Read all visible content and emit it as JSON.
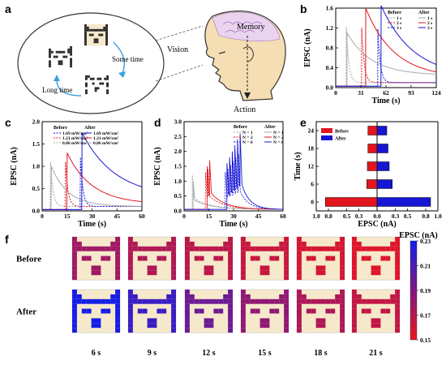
{
  "panel_labels": [
    "a",
    "b",
    "c",
    "d",
    "e",
    "f"
  ],
  "panel_a": {
    "vision_label": "Vision",
    "memory_label": "Memory",
    "action_label": "Action",
    "some_time_label": "Some time",
    "long_time_label": "Long time"
  },
  "colors": {
    "red": "#e0161c",
    "blue": "#1616d4",
    "gray": "#a8a8a8",
    "cream": "#f6e9cb",
    "pixel_dark": "#2b2b2b"
  },
  "chart_data": [
    {
      "id": "b",
      "type": "line",
      "xlabel": "Time (s)",
      "ylabel": "EPSC (nA)",
      "xlim": [
        0,
        124
      ],
      "ylim": [
        0,
        1.6
      ],
      "xticks": [
        0,
        31,
        62,
        93,
        124
      ],
      "yticks": [
        0.0,
        0.4,
        0.8,
        1.2,
        1.6
      ],
      "legend_before_title": "Before",
      "legend_after_title": "After",
      "legend_before": [
        "1 s",
        "2 s",
        "3 s"
      ],
      "legend_after": [
        "1 s",
        "2 s",
        "3 s"
      ],
      "pulses": [
        {
          "group": "before",
          "color": "gray",
          "dash": "2,1.5",
          "t": 13,
          "peak": 1.22,
          "base": 0.1,
          "tau": 3
        },
        {
          "group": "before",
          "color": "red",
          "dash": "2,1.5",
          "t": 32,
          "peak": 1.2,
          "base": 0.1,
          "tau": 3
        },
        {
          "group": "before",
          "color": "blue",
          "dash": "2,1.5",
          "t": 52,
          "peak": 1.18,
          "base": 0.1,
          "tau": 3
        },
        {
          "group": "after",
          "color": "gray",
          "dash": "",
          "t": 14,
          "peak": 1.1,
          "base": 0.25,
          "tau": 30
        },
        {
          "group": "after",
          "color": "red",
          "dash": "",
          "t": 37,
          "peak": 1.6,
          "base": 0.2,
          "tau": 35
        },
        {
          "group": "after",
          "color": "blue",
          "dash": "",
          "t": 56,
          "peak": 1.65,
          "base": 0.2,
          "tau": 40
        }
      ]
    },
    {
      "id": "c",
      "type": "line",
      "xlabel": "Time (s)",
      "ylabel": "EPSC (nA)",
      "xlim": [
        0,
        60
      ],
      "ylim": [
        0,
        2.0
      ],
      "xticks": [
        0,
        15,
        30,
        45,
        60
      ],
      "yticks": [
        0.0,
        0.5,
        1.0,
        1.5,
        2.0
      ],
      "legend_before_title": "Before",
      "legend_after_title": "After",
      "legend_before": [
        "1.69 mW/cm²",
        "1.21 mW/cm²",
        "0.86 mW/cm²"
      ],
      "legend_after": [
        "1.69 mW/cm²",
        "1.21 mW/cm²",
        "0.86 mW/cm²"
      ],
      "legend_before_colors": [
        "blue",
        "red",
        "gray"
      ],
      "legend_after_colors": [
        "blue",
        "red",
        "gray"
      ],
      "pulses": [
        {
          "group": "before",
          "color": "gray",
          "dash": "2,1.5",
          "t": 5,
          "peak": 1.1,
          "base": 0.1,
          "tau": 1.5
        },
        {
          "group": "before",
          "color": "red",
          "dash": "2,1.5",
          "t": 14,
          "peak": 1.1,
          "base": 0.1,
          "tau": 1.5
        },
        {
          "group": "before",
          "color": "blue",
          "dash": "2,1.5",
          "t": 23,
          "peak": 1.2,
          "base": 0.1,
          "tau": 1.5
        },
        {
          "group": "after",
          "color": "gray",
          "dash": "",
          "t": 5.5,
          "peak": 1.0,
          "base": 0.1,
          "tau": 10
        },
        {
          "group": "after",
          "color": "red",
          "dash": "",
          "t": 15,
          "peak": 1.3,
          "base": 0.15,
          "tau": 15
        },
        {
          "group": "after",
          "color": "blue",
          "dash": "",
          "t": 24,
          "peak": 1.75,
          "base": 0.3,
          "tau": 20
        }
      ]
    },
    {
      "id": "d",
      "type": "line",
      "xlabel": "Time (s)",
      "ylabel": "EPSC (nA)",
      "xlim": [
        0,
        60
      ],
      "ylim": [
        0,
        3.0
      ],
      "xticks": [
        0,
        15,
        30,
        45,
        60
      ],
      "yticks": [
        0.0,
        0.5,
        1.0,
        1.5,
        2.0,
        2.5,
        3.0
      ],
      "legend_before_title": "Before",
      "legend_after_title": "After",
      "legend_before": [
        "N = 1",
        "N = 2",
        "N = 6"
      ],
      "legend_after": [
        "N = 1",
        "N = 2",
        "N = 6"
      ],
      "trains": [
        {
          "group": "before",
          "color": "gray",
          "dash": "2,1.5",
          "t0": 5,
          "n": 1,
          "dt": 1.5,
          "peak": 1.2,
          "step": 0
        },
        {
          "group": "before",
          "color": "red",
          "dash": "2,1.5",
          "t0": 13,
          "n": 2,
          "dt": 1.5,
          "peak": 1.3,
          "step": 0.1
        },
        {
          "group": "before",
          "color": "blue",
          "dash": "2,1.5",
          "t0": 25,
          "n": 6,
          "dt": 1.6,
          "peak": 1.3,
          "step": 0.12
        },
        {
          "group": "after",
          "color": "gray",
          "dash": "",
          "t0": 5.5,
          "n": 1,
          "dt": 1.5,
          "peak": 1.0,
          "step": 0
        },
        {
          "group": "after",
          "color": "red",
          "dash": "",
          "t0": 14,
          "n": 2,
          "dt": 1.5,
          "peak": 1.5,
          "step": 0.2
        },
        {
          "group": "after",
          "color": "blue",
          "dash": "",
          "t0": 26,
          "n": 6,
          "dt": 1.6,
          "peak": 1.6,
          "step": 0.2
        }
      ]
    },
    {
      "id": "e",
      "type": "bar",
      "orientation": "horizontal",
      "xlabel": "EPSC (nA)",
      "ylabel": "Time (s)",
      "xlim": [
        -1.0,
        1.0
      ],
      "xticks": [
        -1.0,
        -0.8,
        -0.5,
        -0.3,
        0.0,
        0.3,
        0.5,
        0.8,
        1.0
      ],
      "xtick_labels": [
        "1.0",
        "0.8",
        "0.5",
        "0.3",
        "0.0",
        "0.3",
        "0.5",
        "0.8",
        "1.0"
      ],
      "categories": [
        0,
        6,
        12,
        18,
        24
      ],
      "ylim": [
        -3,
        27
      ],
      "series": [
        {
          "name": "Before",
          "color": "red",
          "values": [
            0.85,
            0.17,
            0.16,
            0.15,
            0.15
          ]
        },
        {
          "name": "After",
          "color": "blue",
          "values": [
            0.88,
            0.25,
            0.2,
            0.18,
            0.16
          ]
        }
      ]
    },
    {
      "id": "f",
      "type": "heatmap",
      "row_labels": [
        "Before",
        "After"
      ],
      "col_labels": [
        "6 s",
        "9 s",
        "12 s",
        "15 s",
        "18 s",
        "21 s"
      ],
      "colorbar_title": "EPSC (nA)",
      "colorbar_ticks": [
        "0.23",
        "0.21",
        "0.19",
        "0.17",
        "0.15"
      ],
      "colorbar_range": [
        0.15,
        0.23
      ],
      "values": [
        [
          0.178,
          0.172,
          0.168,
          0.163,
          0.158,
          0.155
        ],
        [
          0.232,
          0.216,
          0.197,
          0.184,
          0.173,
          0.165
        ]
      ],
      "pattern": [
        "1000000001",
        "1100000011",
        "1111111111",
        "1000000001",
        "1011001101",
        "1000000001",
        "1000110001",
        "1000110001",
        "1000000001"
      ]
    }
  ]
}
